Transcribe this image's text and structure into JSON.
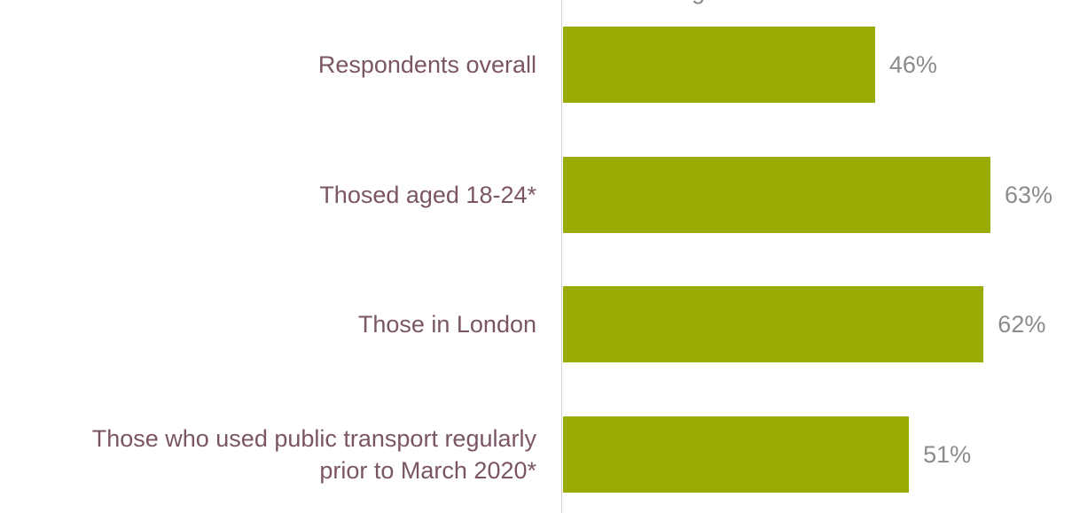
{
  "chart_data": {
    "type": "bar",
    "orientation": "horizontal",
    "title_fragment": "g",
    "categories": [
      "Respondents overall",
      "Thosed aged 18-24*",
      "Those in London",
      "Those who used public transport regularly\nprior to March 2020*"
    ],
    "values": [
      46,
      63,
      62,
      51
    ],
    "value_labels": [
      "46%",
      "63%",
      "62%",
      "51%"
    ],
    "unit": "%",
    "xlim": [
      0,
      100
    ],
    "bar_color": "#9aab03",
    "category_label_color": "#7a5566",
    "value_label_color": "#8b8b8b",
    "grid": false,
    "legend": "none"
  }
}
